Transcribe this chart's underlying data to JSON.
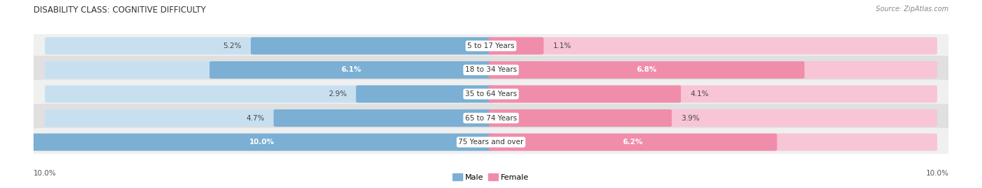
{
  "title": "DISABILITY CLASS: COGNITIVE DIFFICULTY",
  "source_text": "Source: ZipAtlas.com",
  "categories": [
    "5 to 17 Years",
    "18 to 34 Years",
    "35 to 64 Years",
    "65 to 74 Years",
    "75 Years and over"
  ],
  "male_values": [
    5.2,
    6.1,
    2.9,
    4.7,
    10.0
  ],
  "female_values": [
    1.1,
    6.8,
    4.1,
    3.9,
    6.2
  ],
  "male_color": "#7bafd4",
  "female_color": "#f08daa",
  "male_light_color": "#c8dff0",
  "female_light_color": "#f7c5d5",
  "row_bg_odd": "#f0f0f0",
  "row_bg_even": "#e0e0e0",
  "max_val": 10.0,
  "title_fontsize": 8.5,
  "label_fontsize": 7.5,
  "tick_fontsize": 7.5,
  "legend_fontsize": 8,
  "category_label_fontsize": 7.5,
  "source_fontsize": 7
}
